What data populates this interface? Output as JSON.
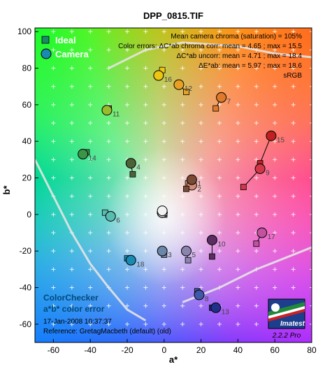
{
  "title": "DPP_0815.TIF",
  "chart_data": {
    "type": "scatter",
    "xlabel": "a*",
    "ylabel": "b*",
    "xlim": [
      -70,
      80
    ],
    "ylim": [
      -70,
      102
    ],
    "xticks": [
      -60,
      -40,
      -20,
      0,
      20,
      40,
      60,
      80
    ],
    "yticks": [
      -60,
      -40,
      -20,
      0,
      20,
      40,
      60,
      80,
      100
    ],
    "grid": true,
    "legend_position": "top-left",
    "series": [
      {
        "name": "Ideal",
        "marker": "square"
      },
      {
        "name": "Camera",
        "marker": "circle"
      }
    ],
    "patches": [
      {
        "id": "1",
        "ideal": [
          12,
          14
        ],
        "camera": [
          15,
          19
        ],
        "color": "#7a4a35"
      },
      {
        "id": "2",
        "ideal": [
          13,
          17
        ],
        "camera": [
          15,
          16
        ],
        "color": "#d08c74"
      },
      {
        "id": "3",
        "ideal": [
          0,
          -22
        ],
        "camera": [
          -1,
          -20
        ],
        "color": "#6a86a8"
      },
      {
        "id": "4",
        "ideal": [
          -17,
          22
        ],
        "camera": [
          -18,
          28
        ],
        "color": "#4d6238"
      },
      {
        "id": "5",
        "ideal": [
          13,
          -25
        ],
        "camera": [
          12,
          -20
        ],
        "color": "#8c84b0"
      },
      {
        "id": "6",
        "ideal": [
          -32,
          1
        ],
        "camera": [
          -29,
          -1
        ],
        "color": "#59bcb0"
      },
      {
        "id": "7",
        "ideal": [
          28,
          58
        ],
        "camera": [
          31,
          64
        ],
        "color": "#e07a2a"
      },
      {
        "id": "8",
        "ideal": [
          18,
          -42
        ],
        "camera": [
          19,
          -44
        ],
        "color": "#3f58a8"
      },
      {
        "id": "9",
        "ideal": [
          43,
          15
        ],
        "camera": [
          52,
          25
        ],
        "color": "#d0384a"
      },
      {
        "id": "10",
        "ideal": [
          26,
          -23
        ],
        "camera": [
          26,
          -14
        ],
        "color": "#5a2e62"
      },
      {
        "id": "11",
        "ideal": [
          -30,
          58
        ],
        "camera": [
          -31,
          57
        ],
        "color": "#98bc2c"
      },
      {
        "id": "12",
        "ideal": [
          12,
          67
        ],
        "camera": [
          8,
          71
        ],
        "color": "#e8a022"
      },
      {
        "id": "13",
        "ideal": [
          26,
          -51
        ],
        "camera": [
          28,
          -51
        ],
        "color": "#22308a"
      },
      {
        "id": "14",
        "ideal": [
          -42,
          34
        ],
        "camera": [
          -44,
          33
        ],
        "color": "#3c9448"
      },
      {
        "id": "15",
        "ideal": [
          52,
          28
        ],
        "camera": [
          58,
          43
        ],
        "color": "#c02020"
      },
      {
        "id": "16",
        "ideal": [
          -1,
          79
        ],
        "camera": [
          -3,
          76
        ],
        "color": "#ecc612"
      },
      {
        "id": "17",
        "ideal": [
          50,
          -16
        ],
        "camera": [
          53,
          -10
        ],
        "color": "#c450a0"
      },
      {
        "id": "18",
        "ideal": [
          -20,
          -24
        ],
        "camera": [
          -18,
          -25
        ],
        "color": "#1a8ab0"
      },
      {
        "id": "19",
        "ideal": [
          0,
          1
        ],
        "camera": [
          -1,
          2
        ],
        "color": "#f2f2f2"
      },
      {
        "id": "20",
        "ideal": [
          0,
          1
        ],
        "camera": [
          -1,
          1
        ],
        "color": "#c8c8c8"
      },
      {
        "id": "21",
        "ideal": [
          0,
          0
        ],
        "camera": [
          -1,
          1
        ],
        "color": "#a0a0a0"
      },
      {
        "id": "22",
        "ideal": [
          0,
          0
        ],
        "camera": [
          -1,
          1
        ],
        "color": "#7a7a7a"
      },
      {
        "id": "23",
        "ideal": [
          0,
          0
        ],
        "camera": [
          -1,
          1
        ],
        "color": "#555555"
      },
      {
        "id": "24",
        "ideal": [
          0,
          0
        ],
        "camera": [
          -1,
          1
        ],
        "color": "#343434"
      }
    ],
    "label_ids": [
      "1",
      "2",
      "3",
      "4",
      "5",
      "6",
      "7",
      "8",
      "9",
      "10",
      "11",
      "12",
      "13",
      "14",
      "15",
      "16",
      "17",
      "18"
    ],
    "gamut_boundary": {
      "name": "sRGB",
      "upper": [
        [
          -30,
          80
        ],
        [
          -10,
          90
        ],
        [
          10,
          94
        ],
        [
          40,
          92
        ],
        [
          60,
          88
        ],
        [
          80,
          86
        ]
      ],
      "lower": [
        [
          -70,
          30
        ],
        [
          -60,
          10
        ],
        [
          -50,
          -10
        ],
        [
          -40,
          -27
        ],
        [
          -30,
          -40
        ],
        [
          -20,
          -52
        ],
        [
          -10,
          -58
        ]
      ],
      "right": [
        [
          10,
          -48
        ],
        [
          30,
          -40
        ],
        [
          50,
          -30
        ],
        [
          70,
          -22
        ],
        [
          80,
          -18
        ]
      ]
    },
    "stats": [
      "Mean camera chroma (saturation) = 105%",
      "Color errors: ΔC*ab chroma corr:  mean = 4.65 ;  max = 15.5",
      "ΔC*ab uncorr:  mean = 4.71 ;  max = 18.4",
      "ΔE*ab:  mean = 5.97 ;  max = 18.6",
      "sRGB"
    ],
    "caption": {
      "line1": "ColorChecker",
      "line2": "a*b* color error",
      "date": "17-Jan-2008 10:37:37",
      "reference": "Reference: GretagMacbeth (default) (old)"
    },
    "logo": {
      "name": "Imatest",
      "version": "2.2.2  Pro"
    }
  }
}
